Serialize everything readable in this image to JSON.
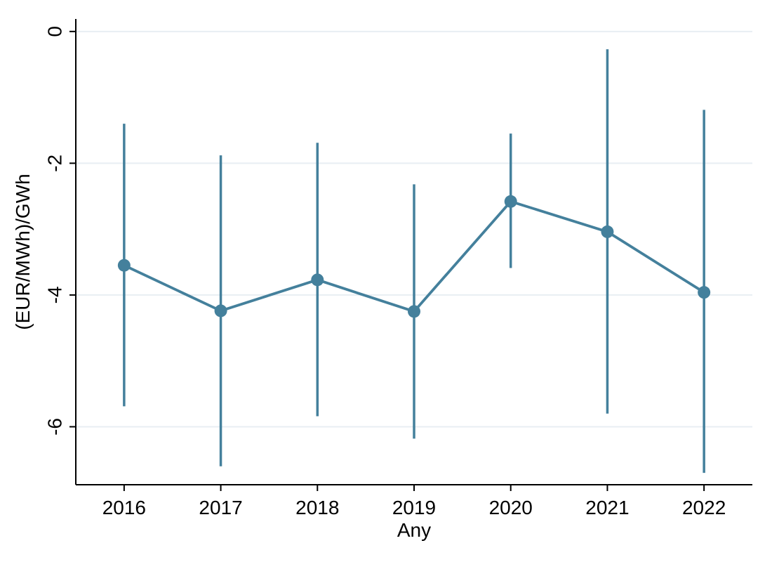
{
  "figure": {
    "background_color": "#ffffff"
  },
  "chart_data": {
    "type": "line",
    "subtype": "coefficient-plot-with-confidence-intervals",
    "title": "",
    "xlabel": "Any",
    "ylabel": "(EUR/MWh)/GWh",
    "categories": [
      "2016",
      "2017",
      "2018",
      "2019",
      "2020",
      "2021",
      "2022"
    ],
    "series": [
      {
        "name": "point-estimate",
        "values": [
          -3.55,
          -4.24,
          -3.77,
          -4.25,
          -2.58,
          -3.04,
          -3.96
        ],
        "ci_low": [
          -5.69,
          -6.6,
          -5.84,
          -6.18,
          -3.59,
          -5.8,
          -6.7
        ],
        "ci_high": [
          -1.4,
          -1.88,
          -1.69,
          -2.32,
          -1.55,
          -0.27,
          -1.19
        ]
      }
    ],
    "yticks": [
      0,
      -2,
      -4,
      -6
    ],
    "ytick_labels": [
      "0",
      "-2",
      "-4",
      "-6"
    ],
    "ylim": [
      0.19,
      -6.88
    ],
    "grid": true,
    "legend_position": "none",
    "y_tick_label_rotation_deg": -90,
    "colors": {
      "series": "#44809c",
      "grid": "#e8eef3",
      "axis": "#000000",
      "text": "#000000",
      "background": "#ffffff"
    }
  }
}
